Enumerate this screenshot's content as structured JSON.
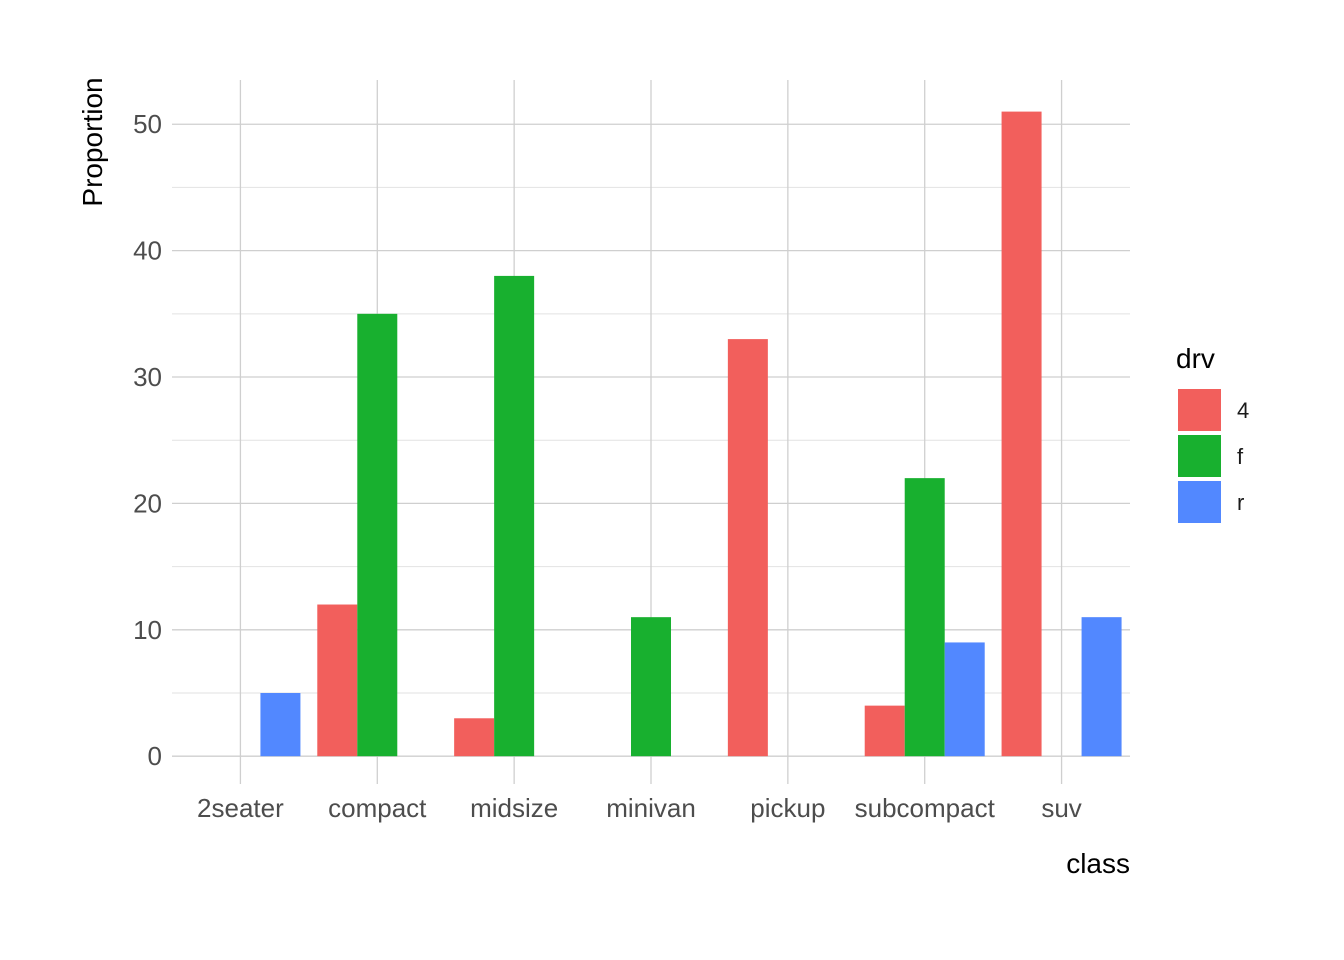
{
  "chart_data": {
    "type": "bar",
    "categories": [
      "2seater",
      "compact",
      "midsize",
      "minivan",
      "pickup",
      "subcompact",
      "suv"
    ],
    "series": [
      {
        "name": "4",
        "color": "#F8766D",
        "values": [
          null,
          12,
          3,
          null,
          33,
          4,
          51
        ]
      },
      {
        "name": "f",
        "color": "#1CB232",
        "values": [
          null,
          35,
          38,
          11,
          null,
          22,
          null
        ]
      },
      {
        "name": "r",
        "color": "#6190FF",
        "values": [
          5,
          null,
          null,
          null,
          null,
          9,
          11
        ]
      }
    ],
    "colors": {
      "4": "#F25F5C",
      "f": "#18B02F",
      "r": "#5288FF"
    },
    "title": "",
    "xlabel": "class",
    "ylabel": "Proportion",
    "ylim": [
      -2.2,
      53.5
    ],
    "yticks": [
      0,
      10,
      20,
      30,
      40,
      50
    ],
    "grid": true,
    "legend": {
      "title": "drv",
      "placement": "right",
      "entries": [
        "4",
        "f",
        "r"
      ]
    }
  }
}
